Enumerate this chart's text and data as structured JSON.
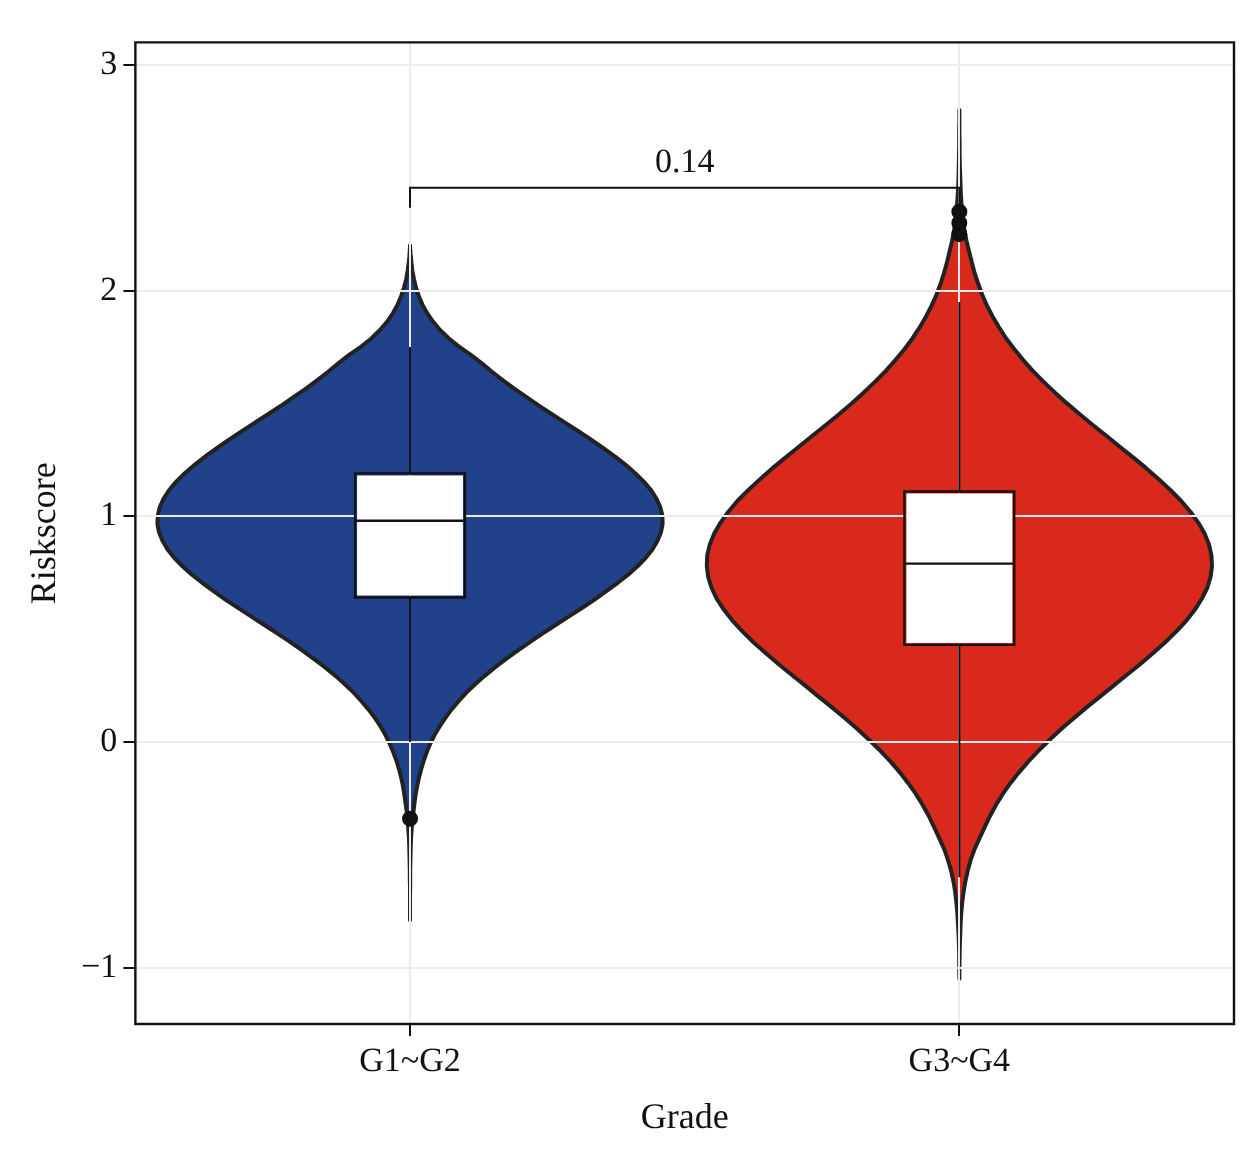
{
  "chart_data": {
    "type": "box",
    "xlabel": "Grade",
    "ylabel": "Riskscore",
    "categories": [
      "G1~G2",
      "G3~G4"
    ],
    "series": [
      {
        "color": "#21428a",
        "boxes": [
          {
            "low": 0,
            "q1": 0.64,
            "median": 0.98,
            "q3": 1.19,
            "high": 1.75,
            "outliers": [
              -0.34
            ]
          },
          null
        ]
      },
      {
        "color": "#d9291c",
        "boxes": [
          null,
          {
            "low": -0.6,
            "q1": 0.43,
            "median": 0.79,
            "q3": 1.11,
            "high": 1.95,
            "outliers": [
              2.25,
              2.3,
              2.35
            ]
          }
        ]
      }
    ],
    "ylim": [
      -1.25,
      3.1
    ],
    "yticks": [
      {
        "value": -1,
        "label": "−1"
      },
      0,
      1,
      2,
      3
    ],
    "grid": true,
    "legend": false,
    "annotations": [
      "0.14"
    ]
  }
}
